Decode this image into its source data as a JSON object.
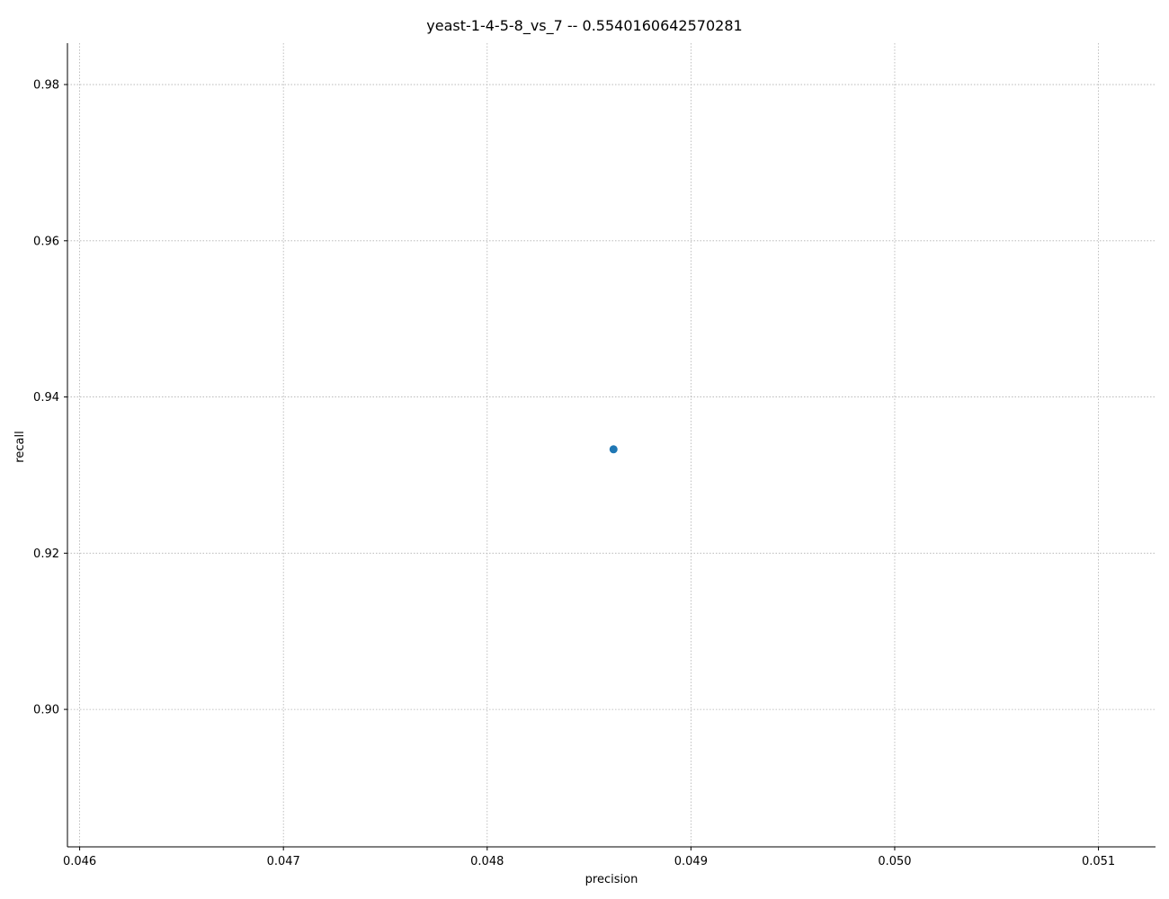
{
  "chart_data": {
    "type": "scatter",
    "title": "yeast-1-4-5-8_vs_7 -- 0.5540160642570281",
    "xlabel": "precision",
    "ylabel": "recall",
    "xlim": [
      0.04594,
      0.05128
    ],
    "ylim": [
      0.8824,
      0.9853
    ],
    "xticks": [
      0.046,
      0.047,
      0.048,
      0.049,
      0.05,
      0.051
    ],
    "xtick_labels": [
      "0.046",
      "0.047",
      "0.048",
      "0.049",
      "0.050",
      "0.051"
    ],
    "yticks": [
      0.9,
      0.92,
      0.94,
      0.96,
      0.98
    ],
    "ytick_labels": [
      "0.90",
      "0.92",
      "0.94",
      "0.96",
      "0.98"
    ],
    "grid": true,
    "points": [
      {
        "x": 0.04862,
        "y": 0.9333
      }
    ],
    "marker_color": "#1f77b4"
  }
}
